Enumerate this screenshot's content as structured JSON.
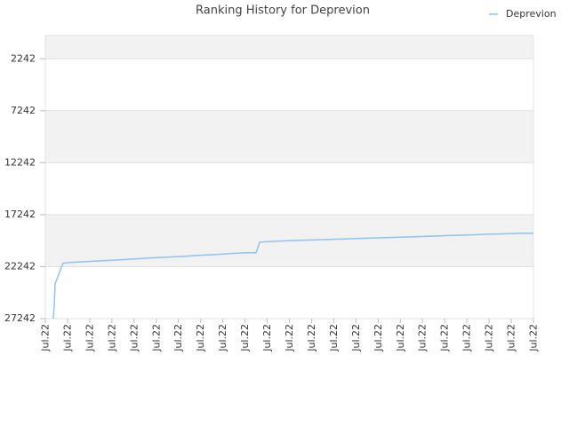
{
  "chart_data": {
    "type": "line",
    "title": "Ranking History for Deprevion",
    "legend": "top-right",
    "series": [
      {
        "name": "Deprevion",
        "color": "#90c3ef",
        "x": [
          0.36,
          0.4,
          0.44,
          0.8,
          1.16,
          1.96,
          2.69,
          3.37,
          4.09,
          4.77,
          5.57,
          6.29,
          6.97,
          7.7,
          8.38,
          9.1,
          9.5,
          9.66,
          10.3,
          11.5,
          12.71,
          13.99,
          15.19,
          16.47,
          17.68,
          18.88,
          20.08,
          21.4,
          22.0
        ],
        "values": [
          27242,
          26000,
          23870,
          21910,
          21830,
          21740,
          21660,
          21580,
          21490,
          21400,
          21320,
          21240,
          21150,
          21070,
          20980,
          20900,
          20900,
          19880,
          19800,
          19710,
          19630,
          19540,
          19460,
          19370,
          19290,
          19200,
          19120,
          19030,
          19030
        ]
      }
    ],
    "xlim": [
      0,
      22
    ],
    "xticks": [
      {
        "value": 0,
        "label": "Jul.22"
      },
      {
        "value": 1,
        "label": "Jul.22"
      },
      {
        "value": 2,
        "label": "Jul.22"
      },
      {
        "value": 3,
        "label": "Jul.22"
      },
      {
        "value": 4,
        "label": "Jul.22"
      },
      {
        "value": 5,
        "label": "Jul.22"
      },
      {
        "value": 6,
        "label": "Jul.22"
      },
      {
        "value": 7,
        "label": "Jul.22"
      },
      {
        "value": 8,
        "label": "Jul.22"
      },
      {
        "value": 9,
        "label": "Jul.22"
      },
      {
        "value": 10,
        "label": "Jul.22"
      },
      {
        "value": 11,
        "label": "Jul.22"
      },
      {
        "value": 12,
        "label": "Jul.22"
      },
      {
        "value": 13,
        "label": "Jul.22"
      },
      {
        "value": 14,
        "label": "Jul.22"
      },
      {
        "value": 15,
        "label": "Jul.22"
      },
      {
        "value": 16,
        "label": "Jul.22"
      },
      {
        "value": 17,
        "label": "Jul.22"
      },
      {
        "value": 18,
        "label": "Jul.22"
      },
      {
        "value": 19,
        "label": "Jul.22"
      },
      {
        "value": 20,
        "label": "Jul.22"
      },
      {
        "value": 21,
        "label": "Jul.22"
      },
      {
        "value": 22,
        "label": "Jul.22"
      }
    ],
    "ylim": [
      27242,
      0
    ],
    "yticks": [
      2242,
      7242,
      12242,
      17242,
      22242,
      27242
    ],
    "grid": true
  }
}
